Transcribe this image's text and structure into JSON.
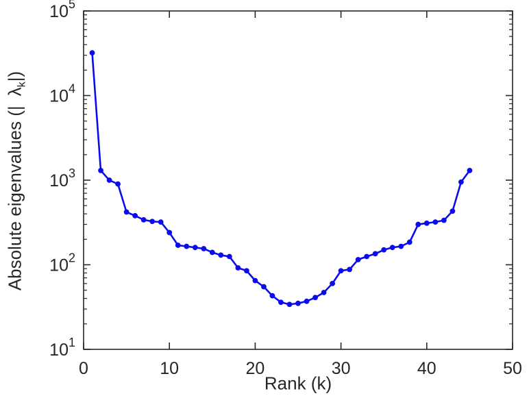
{
  "chart_data": {
    "type": "line",
    "title": "",
    "xlabel": "Rank (k)",
    "ylabel": "Absolute eigenvalues (|λk|)",
    "ylabel_parts": {
      "prefix": "Absolute eigenvalues (|",
      "lambda": "λ",
      "sub": "k",
      "suffix": "|)"
    },
    "xlim": [
      0,
      50
    ],
    "ylim_log10": [
      1,
      5
    ],
    "x_ticks": [
      0,
      10,
      20,
      30,
      40,
      50
    ],
    "y_tick_base": "10",
    "y_tick_exponents": [
      1,
      2,
      3,
      4,
      5
    ],
    "y_scale": "log",
    "grid": false,
    "legend": null,
    "line_color": "#0b0bee",
    "axis_color": "#262626",
    "marker": "circle",
    "x": [
      1,
      2,
      3,
      4,
      5,
      6,
      7,
      8,
      9,
      10,
      11,
      12,
      13,
      14,
      15,
      16,
      17,
      18,
      19,
      20,
      21,
      22,
      23,
      24,
      25,
      26,
      27,
      28,
      29,
      30,
      31,
      32,
      33,
      34,
      35,
      36,
      37,
      38,
      39,
      40,
      41,
      42,
      43,
      44,
      45
    ],
    "y": [
      32000,
      1300,
      1000,
      900,
      420,
      380,
      340,
      325,
      320,
      240,
      170,
      165,
      160,
      155,
      140,
      130,
      125,
      92,
      85,
      65,
      55,
      43,
      36,
      34,
      35,
      37,
      41,
      47,
      60,
      85,
      88,
      115,
      125,
      135,
      150,
      160,
      165,
      185,
      300,
      310,
      320,
      335,
      430,
      950,
      1300
    ]
  }
}
